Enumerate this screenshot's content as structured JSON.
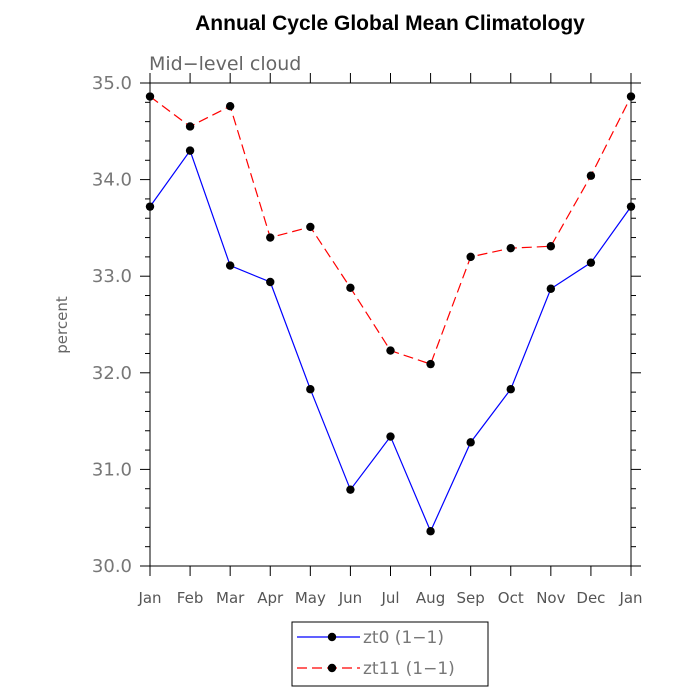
{
  "chart_data": {
    "type": "line",
    "title": "Annual Cycle Global Mean Climatology",
    "subtitle": "Mid−level cloud",
    "ylabel": "percent",
    "xlabel": "",
    "ylim": [
      30.0,
      35.0
    ],
    "yticks": [
      "30.0",
      "31.0",
      "32.0",
      "33.0",
      "34.0",
      "35.0"
    ],
    "categories": [
      "Jan",
      "Feb",
      "Mar",
      "Apr",
      "May",
      "Jun",
      "Jul",
      "Aug",
      "Sep",
      "Oct",
      "Nov",
      "Dec",
      "Jan"
    ],
    "series": [
      {
        "name": "zt0 (1−1)",
        "color": "#0000ff",
        "dash": "solid",
        "values": [
          33.72,
          34.3,
          33.11,
          32.94,
          31.83,
          30.79,
          31.34,
          30.36,
          31.28,
          31.83,
          32.87,
          33.14,
          33.72
        ]
      },
      {
        "name": "zt11 (1−1)",
        "color": "#ff0000",
        "dash": "dashed",
        "values": [
          34.86,
          34.55,
          34.76,
          33.4,
          33.51,
          32.88,
          32.23,
          32.09,
          33.2,
          33.29,
          33.31,
          34.04,
          34.86
        ]
      }
    ],
    "legend_position": "bottom-center",
    "grid": false
  }
}
